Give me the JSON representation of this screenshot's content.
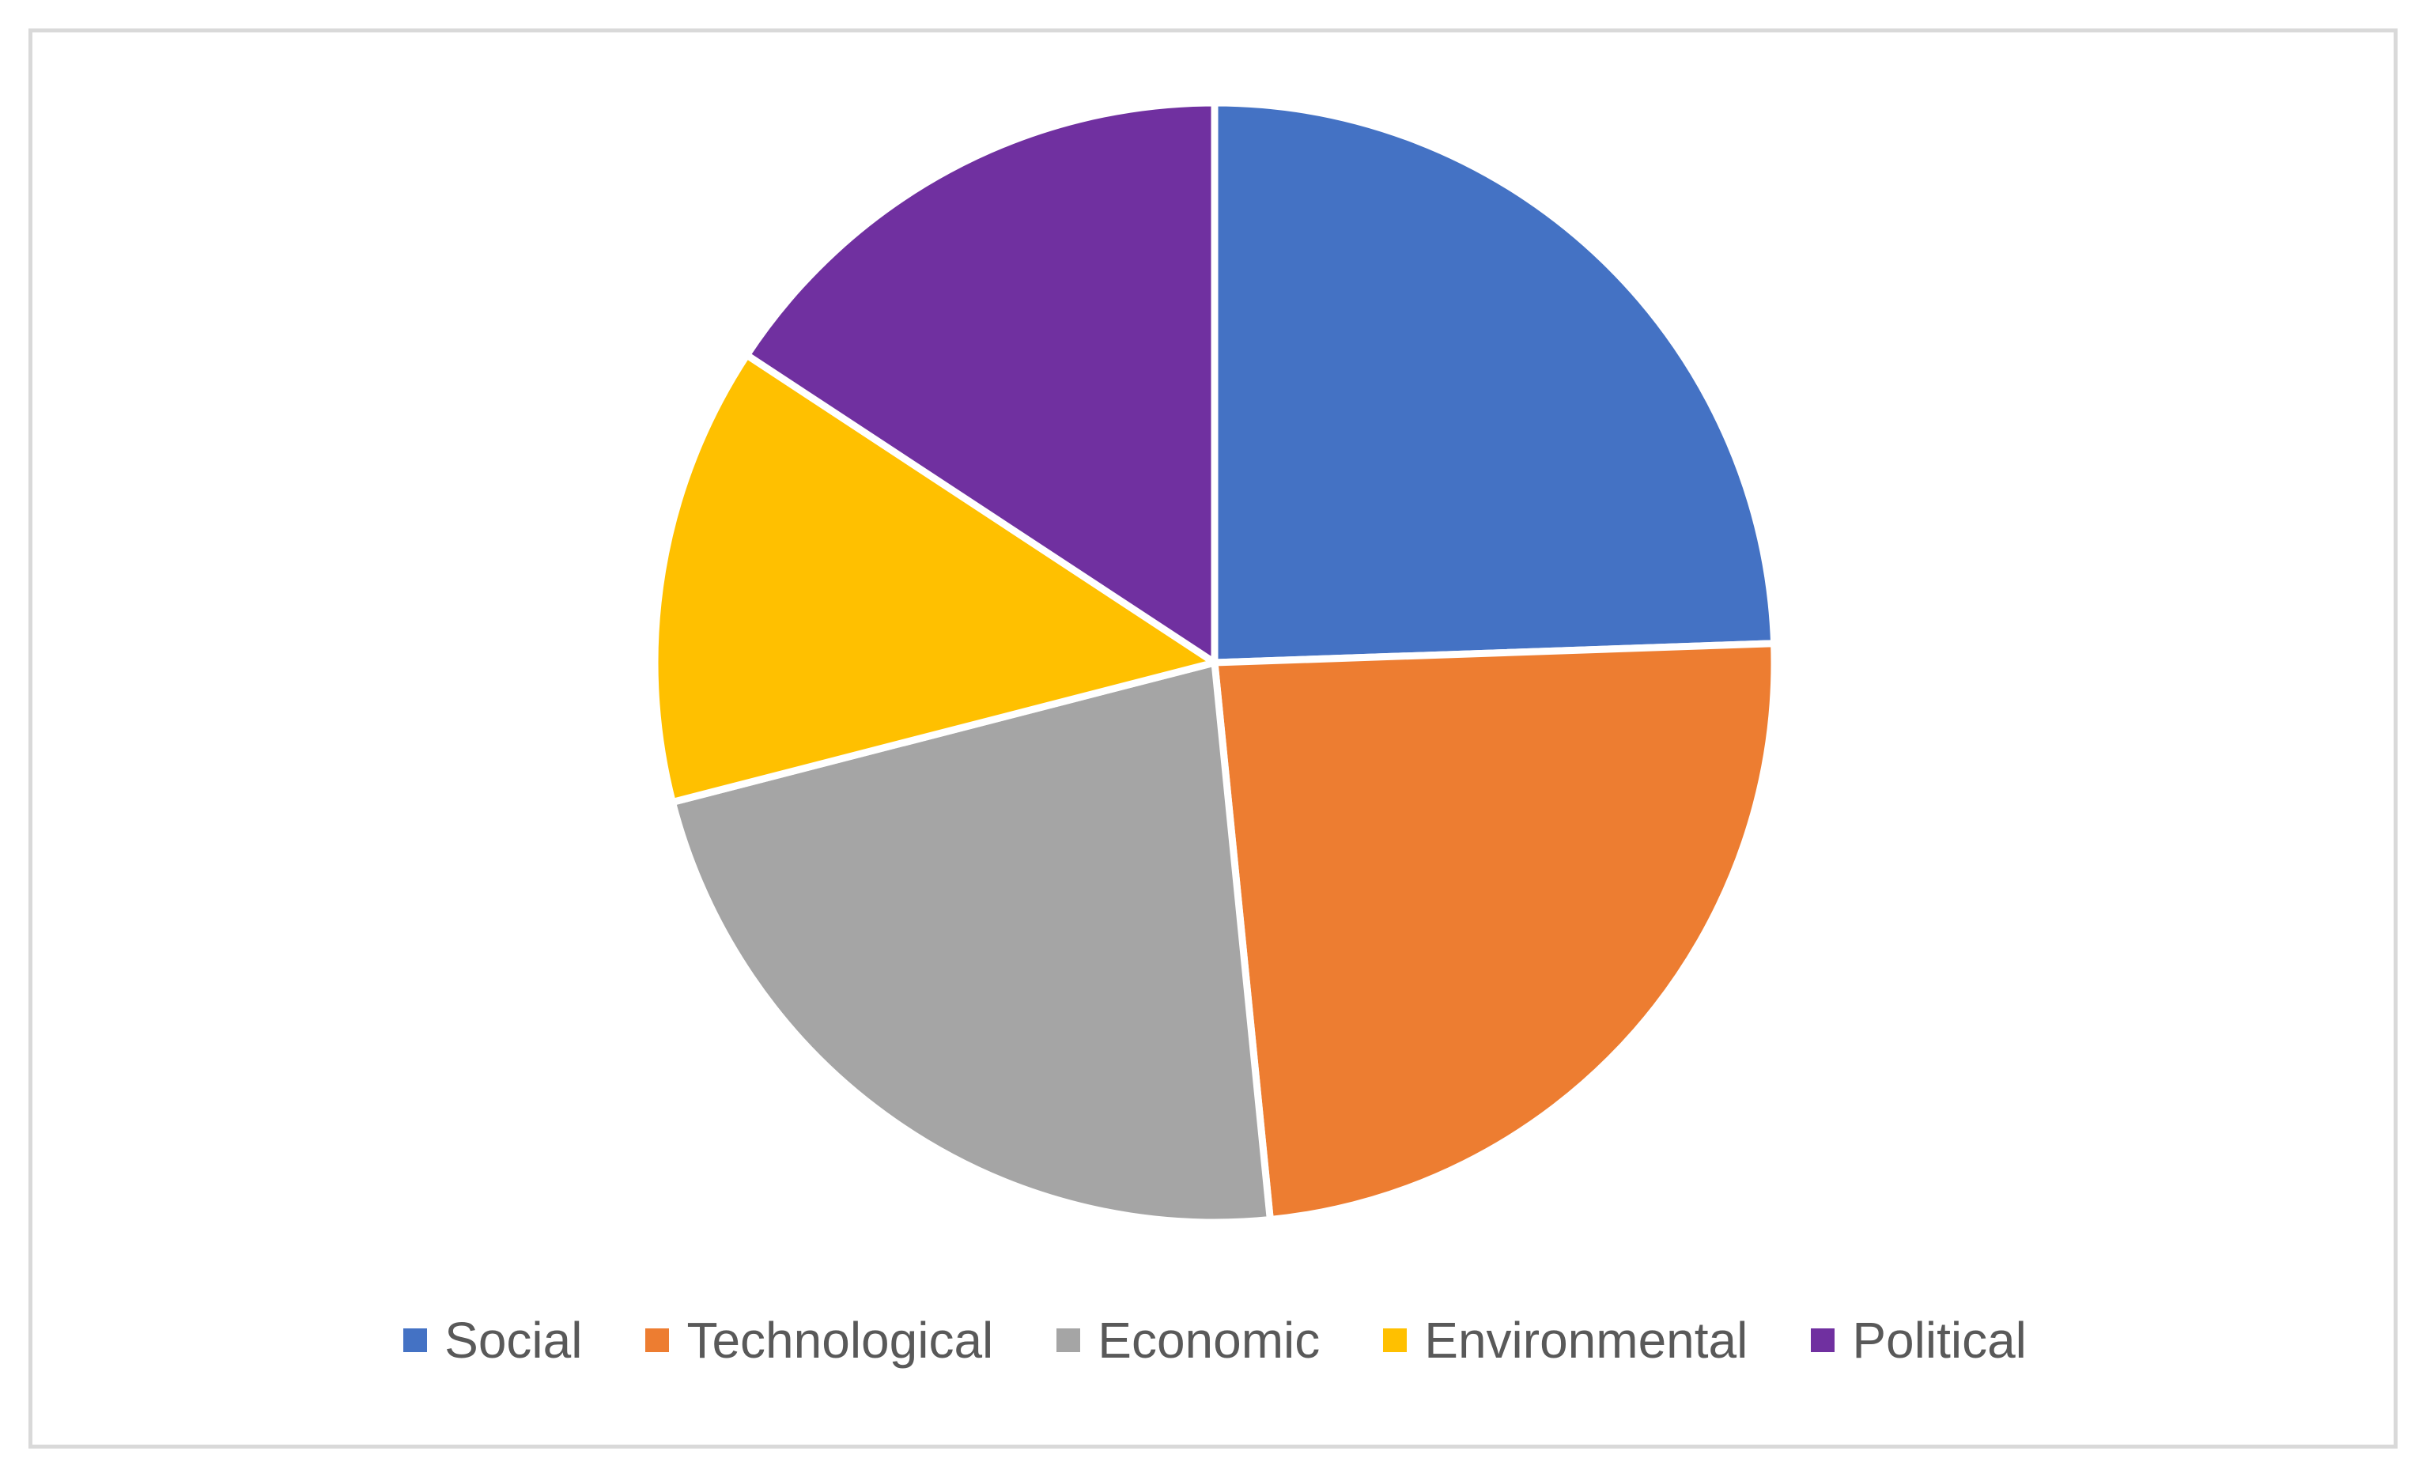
{
  "chart_data": {
    "type": "pie",
    "title": "",
    "categories": [
      "Social",
      "Technological",
      "Economic",
      "Environmental",
      "Political"
    ],
    "values": [
      24.7,
      24.2,
      22.8,
      13.4,
      15.9
    ],
    "colors": [
      "#4472C4",
      "#ED7D31",
      "#A5A5A5",
      "#FFC000",
      "#7030A0"
    ],
    "start_angle": "12 o'clock",
    "direction": "clockwise",
    "slice_separator_color": "#ffffff",
    "legend_position": "bottom"
  }
}
